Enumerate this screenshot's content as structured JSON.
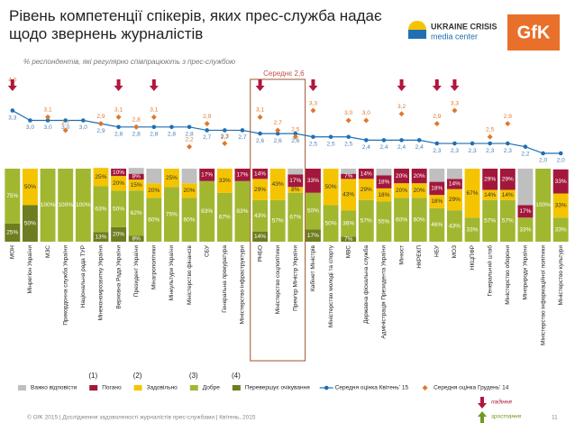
{
  "chart_data": {
    "type": "bar",
    "stacked": true,
    "title": "Рівень компетенції спікерів, яких прес-служба надає щодо звернень журналістів",
    "subtitle": "% респондентів, які регулярно співпрацюють з прес-службою",
    "logos": [
      "UKRAINE CRISIS",
      "media center",
      "GfK"
    ],
    "footer": "© GfK 2015 | Дослідження задоволеності журналістів прес-службами | Квітень, 2015",
    "page_number": "11",
    "categories": [
      "МОН",
      "Мінрегіон України",
      "МЗС",
      "Прикордонна служба України",
      "Національна рада ТУР",
      "Мінекономрозвитку України",
      "Верховна Рада України",
      "Президент України",
      "Мінагрополітики",
      "Мінкультури України",
      "Міністерство фінансів",
      "СБУ",
      "Генеральна прокуратура",
      "Міністерство інфраструктури",
      "РНБО",
      "Міністерство соцполітики",
      "Прем'єр Міністр України",
      "Кабінет Міністрів",
      "Міністерство молоді та спорту",
      "МВС",
      "Державна фіскальна служба",
      "Адміністрація Президента України",
      "Мінюст",
      "НКРЕКП",
      "НБУ",
      "МОЗ",
      "НКЦПФР",
      "Генеральний штаб",
      "Міністерство оборони",
      "Мінприроди України",
      "Міністерство інформаційної політики",
      "Міністерство культури"
    ],
    "ylim": [
      0,
      100
    ],
    "y2lim": [
      2,
      4
    ],
    "series": [
      {
        "name": "Важко відповісти",
        "color": "#bfbfbf",
        "values": [
          0,
          0,
          0,
          0,
          0,
          0,
          0,
          8,
          20,
          0,
          20,
          0,
          0,
          0,
          0,
          0,
          8,
          0,
          0,
          7,
          0,
          9,
          0,
          0,
          18,
          14,
          0,
          0,
          0,
          50,
          0,
          0
        ]
      },
      {
        "name": "Погано",
        "color": "#a3173c",
        "note": "(1)",
        "values": [
          0,
          0,
          0,
          0,
          0,
          0,
          10,
          8,
          0,
          0,
          0,
          17,
          0,
          17,
          14,
          0,
          17,
          33,
          0,
          7,
          14,
          18,
          20,
          20,
          18,
          14,
          0,
          29,
          29,
          17,
          0,
          33
        ],
        "value_labels": [
          null,
          null,
          null,
          null,
          null,
          null,
          "10%",
          "8%",
          null,
          null,
          null,
          "17%",
          null,
          "17%",
          "14%",
          null,
          "17%",
          "33%",
          null,
          "7%",
          "14%",
          "18%",
          "20%",
          "20%",
          "18%",
          "14%",
          null,
          "29%",
          "29%",
          "17%",
          null,
          "33%"
        ]
      },
      {
        "name": "Задовільно",
        "color": "#f5c400",
        "note": "(2)",
        "values": [
          0,
          50,
          0,
          0,
          0,
          25,
          20,
          15,
          20,
          25,
          20,
          0,
          33,
          0,
          29,
          43,
          8,
          0,
          50,
          43,
          29,
          18,
          20,
          20,
          18,
          29,
          67,
          14,
          14,
          0,
          0,
          33
        ],
        "value_labels": [
          null,
          "50%",
          null,
          null,
          null,
          "25%",
          "20%",
          "15%",
          "20%",
          "25%",
          "20%",
          null,
          "33%",
          null,
          "29%",
          "43%",
          "8%",
          null,
          "50%",
          "43%",
          "29%",
          "18%",
          "20%",
          "20%",
          "18%",
          "29%",
          "67%",
          "14%",
          "14%",
          null,
          null,
          "33%"
        ]
      },
      {
        "name": "Добре",
        "color": "#a2b730",
        "note": "(3)",
        "values": [
          75,
          0,
          100,
          100,
          100,
          63,
          50,
          62,
          60,
          75,
          60,
          83,
          67,
          83,
          43,
          57,
          67,
          50,
          50,
          36,
          57,
          55,
          60,
          60,
          46,
          43,
          33,
          57,
          57,
          33,
          100,
          33
        ],
        "value_labels": [
          "75%",
          null,
          "100%",
          "100%",
          "100%",
          "63%",
          "50%",
          "62%",
          "60%",
          "75%",
          "60%",
          "83%",
          "67%",
          "83%",
          "43%",
          "57%",
          "67%",
          "50%",
          "50%",
          "36%",
          "57%",
          "55%",
          "60%",
          "60%",
          "46%",
          "43%",
          "33%",
          "57%",
          "57%",
          "33%",
          "100%",
          "33%"
        ]
      },
      {
        "name": "Перевершує очікування",
        "color": "#6e7d1f",
        "note": "(4)",
        "values": [
          25,
          50,
          0,
          0,
          0,
          13,
          20,
          8,
          0,
          0,
          0,
          0,
          0,
          0,
          14,
          0,
          0,
          17,
          0,
          7,
          0,
          0,
          0,
          0,
          0,
          0,
          0,
          0,
          0,
          0,
          0,
          0
        ],
        "value_labels": [
          "25%",
          "50%",
          null,
          null,
          null,
          "13%",
          "20%",
          "8%",
          null,
          null,
          null,
          null,
          null,
          null,
          "14%",
          null,
          null,
          "17%",
          null,
          "7%",
          null,
          null,
          null,
          null,
          null,
          null,
          null,
          null,
          null,
          null,
          null,
          null
        ]
      },
      {
        "name": "Середня оцінка Квітень' 15",
        "type": "line",
        "axis": "y2",
        "marker": "circle",
        "color": "#1f6fb2",
        "values": [
          3.3,
          3.0,
          3.0,
          3.0,
          3.0,
          2.9,
          2.8,
          2.8,
          2.8,
          2.8,
          2.8,
          2.7,
          2.7,
          2.7,
          2.6,
          2.6,
          2.6,
          2.5,
          2.5,
          2.5,
          2.4,
          2.4,
          2.4,
          2.4,
          2.3,
          2.3,
          2.3,
          2.3,
          2.3,
          2.2,
          2.0,
          2.0
        ],
        "value_labels": [
          "3,3",
          "3,0",
          "3,0",
          "3,0",
          "3,0",
          "2,9",
          "2,8",
          "2,8",
          "2,8",
          "2,8",
          "2,8",
          "2,7",
          "2,7",
          "2,7",
          "2,6",
          "2,6",
          "2,6",
          "2,5",
          "2,5",
          "2,5",
          "2,4",
          "2,4",
          "2,4",
          "2,4",
          "2,3",
          "2,3",
          "2,3",
          "2,3",
          "2,3",
          "2,2",
          "2,0",
          "2,0"
        ]
      },
      {
        "name": "Середня оцінка  Грудень' 14",
        "type": "scatter",
        "axis": "y2",
        "marker": "diamond",
        "color": "#e0782a",
        "values": [
          4.0,
          null,
          3.1,
          2.7,
          null,
          2.9,
          3.1,
          2.8,
          3.1,
          null,
          2.2,
          2.9,
          2.3,
          null,
          3.1,
          2.7,
          2.5,
          3.3,
          null,
          3.0,
          3.0,
          null,
          3.2,
          null,
          2.9,
          3.3,
          null,
          2.5,
          2.9,
          null,
          null,
          null
        ],
        "value_labels": [
          "4,0",
          null,
          "3,1",
          "2,7",
          null,
          "2,9",
          "3,1",
          "2,8",
          "3,1",
          null,
          "2,2",
          "2,9",
          "2,3",
          null,
          "3,1",
          "2,7",
          "2,5",
          "3,3",
          null,
          "3,0",
          "3,0",
          null,
          "3,2",
          null,
          "2,9",
          "3,3",
          null,
          "2,5",
          "2,9",
          null,
          null,
          null
        ]
      }
    ],
    "annotation": {
      "text": "Середнє 2,6",
      "from": 14,
      "to": 16
    },
    "trend": [
      "down",
      null,
      null,
      null,
      null,
      null,
      "down",
      null,
      "down",
      null,
      null,
      null,
      null,
      null,
      "down",
      null,
      null,
      "down",
      null,
      null,
      null,
      null,
      "down",
      null,
      "down",
      "down",
      null,
      null,
      null,
      null,
      null,
      null
    ],
    "trend_legend": {
      "down": "падіння",
      "up": "зростання"
    }
  }
}
